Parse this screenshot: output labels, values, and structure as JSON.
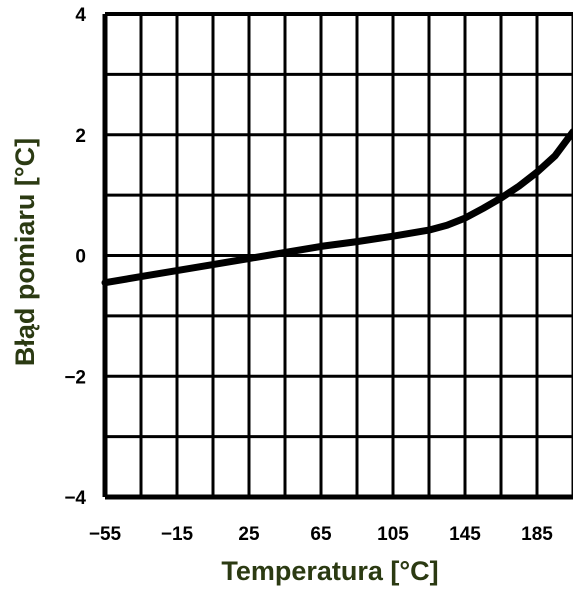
{
  "chart_data": {
    "type": "line",
    "xlabel": "Temperatura [°C]",
    "ylabel": "Błąd pomiaru [°C]",
    "xlim": [
      -55,
      205
    ],
    "ylim": [
      -4,
      4
    ],
    "x_tick_labels": [
      "−55",
      "−15",
      "25",
      "65",
      "105",
      "145",
      "185"
    ],
    "y_tick_labels": [
      "4",
      "2",
      "0",
      "−2",
      "−4"
    ],
    "x_ticks": [
      -55,
      -15,
      25,
      65,
      105,
      145,
      185
    ],
    "y_ticks": [
      4,
      2,
      0,
      -2,
      -4
    ],
    "grid": true,
    "series": [
      {
        "x": [
          -55,
          -35,
          -15,
          5,
          25,
          45,
          65,
          85,
          105,
          125,
          135,
          145,
          155,
          165,
          175,
          185,
          195,
          205
        ],
        "y": [
          -0.45,
          -0.35,
          -0.25,
          -0.15,
          -0.05,
          0.05,
          0.15,
          0.23,
          0.32,
          0.42,
          0.5,
          0.62,
          0.78,
          0.95,
          1.15,
          1.38,
          1.65,
          2.05
        ]
      }
    ]
  }
}
